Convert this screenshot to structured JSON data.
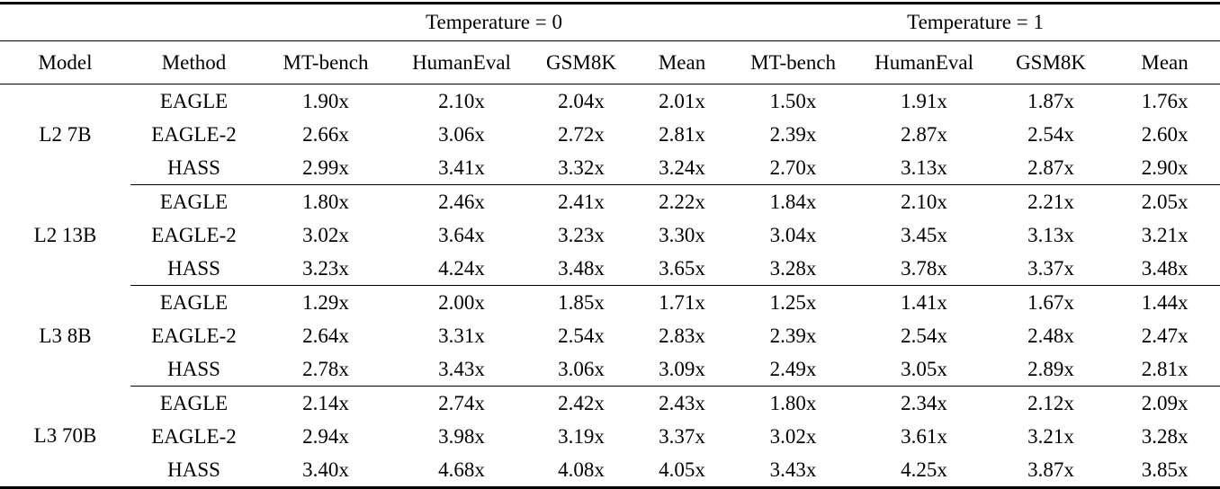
{
  "table": {
    "temperature_groups": [
      {
        "label": "Temperature = 0"
      },
      {
        "label": "Temperature = 1"
      }
    ],
    "columns": [
      "Model",
      "Method",
      "MT-bench",
      "HumanEval",
      "GSM8K",
      "Mean",
      "MT-bench",
      "HumanEval",
      "GSM8K",
      "Mean"
    ],
    "groups": [
      {
        "model": "L2 7B",
        "rows": [
          {
            "method": "EAGLE",
            "bold": false,
            "values": [
              "1.90x",
              "2.10x",
              "2.04x",
              "2.01x",
              "1.50x",
              "1.91x",
              "1.87x",
              "1.76x"
            ]
          },
          {
            "method": "EAGLE-2",
            "bold": false,
            "values": [
              "2.66x",
              "3.06x",
              "2.72x",
              "2.81x",
              "2.39x",
              "2.87x",
              "2.54x",
              "2.60x"
            ]
          },
          {
            "method": "HASS",
            "bold": true,
            "values": [
              "2.99x",
              "3.41x",
              "3.32x",
              "3.24x",
              "2.70x",
              "3.13x",
              "2.87x",
              "2.90x"
            ]
          }
        ]
      },
      {
        "model": "L2 13B",
        "rows": [
          {
            "method": "EAGLE",
            "bold": false,
            "values": [
              "1.80x",
              "2.46x",
              "2.41x",
              "2.22x",
              "1.84x",
              "2.10x",
              "2.21x",
              "2.05x"
            ]
          },
          {
            "method": "EAGLE-2",
            "bold": false,
            "values": [
              "3.02x",
              "3.64x",
              "3.23x",
              "3.30x",
              "3.04x",
              "3.45x",
              "3.13x",
              "3.21x"
            ]
          },
          {
            "method": "HASS",
            "bold": true,
            "values": [
              "3.23x",
              "4.24x",
              "3.48x",
              "3.65x",
              "3.28x",
              "3.78x",
              "3.37x",
              "3.48x"
            ]
          }
        ]
      },
      {
        "model": "L3 8B",
        "rows": [
          {
            "method": "EAGLE",
            "bold": false,
            "values": [
              "1.29x",
              "2.00x",
              "1.85x",
              "1.71x",
              "1.25x",
              "1.41x",
              "1.67x",
              "1.44x"
            ]
          },
          {
            "method": "EAGLE-2",
            "bold": false,
            "values": [
              "2.64x",
              "3.31x",
              "2.54x",
              "2.83x",
              "2.39x",
              "2.54x",
              "2.48x",
              "2.47x"
            ]
          },
          {
            "method": "HASS",
            "bold": true,
            "values": [
              "2.78x",
              "3.43x",
              "3.06x",
              "3.09x",
              "2.49x",
              "3.05x",
              "2.89x",
              "2.81x"
            ]
          }
        ]
      },
      {
        "model": "L3 70B",
        "rows": [
          {
            "method": "EAGLE",
            "bold": false,
            "values": [
              "2.14x",
              "2.74x",
              "2.42x",
              "2.43x",
              "1.80x",
              "2.34x",
              "2.12x",
              "2.09x"
            ]
          },
          {
            "method": "EAGLE-2",
            "bold": false,
            "values": [
              "2.94x",
              "3.98x",
              "3.19x",
              "3.37x",
              "3.02x",
              "3.61x",
              "3.21x",
              "3.28x"
            ]
          },
          {
            "method": "HASS",
            "bold": true,
            "values": [
              "3.40x",
              "4.68x",
              "4.08x",
              "4.05x",
              "3.43x",
              "4.25x",
              "3.87x",
              "3.85x"
            ]
          }
        ]
      }
    ],
    "colors": {
      "text": "#000000",
      "background": "#ffffff",
      "rule": "#000000"
    }
  }
}
